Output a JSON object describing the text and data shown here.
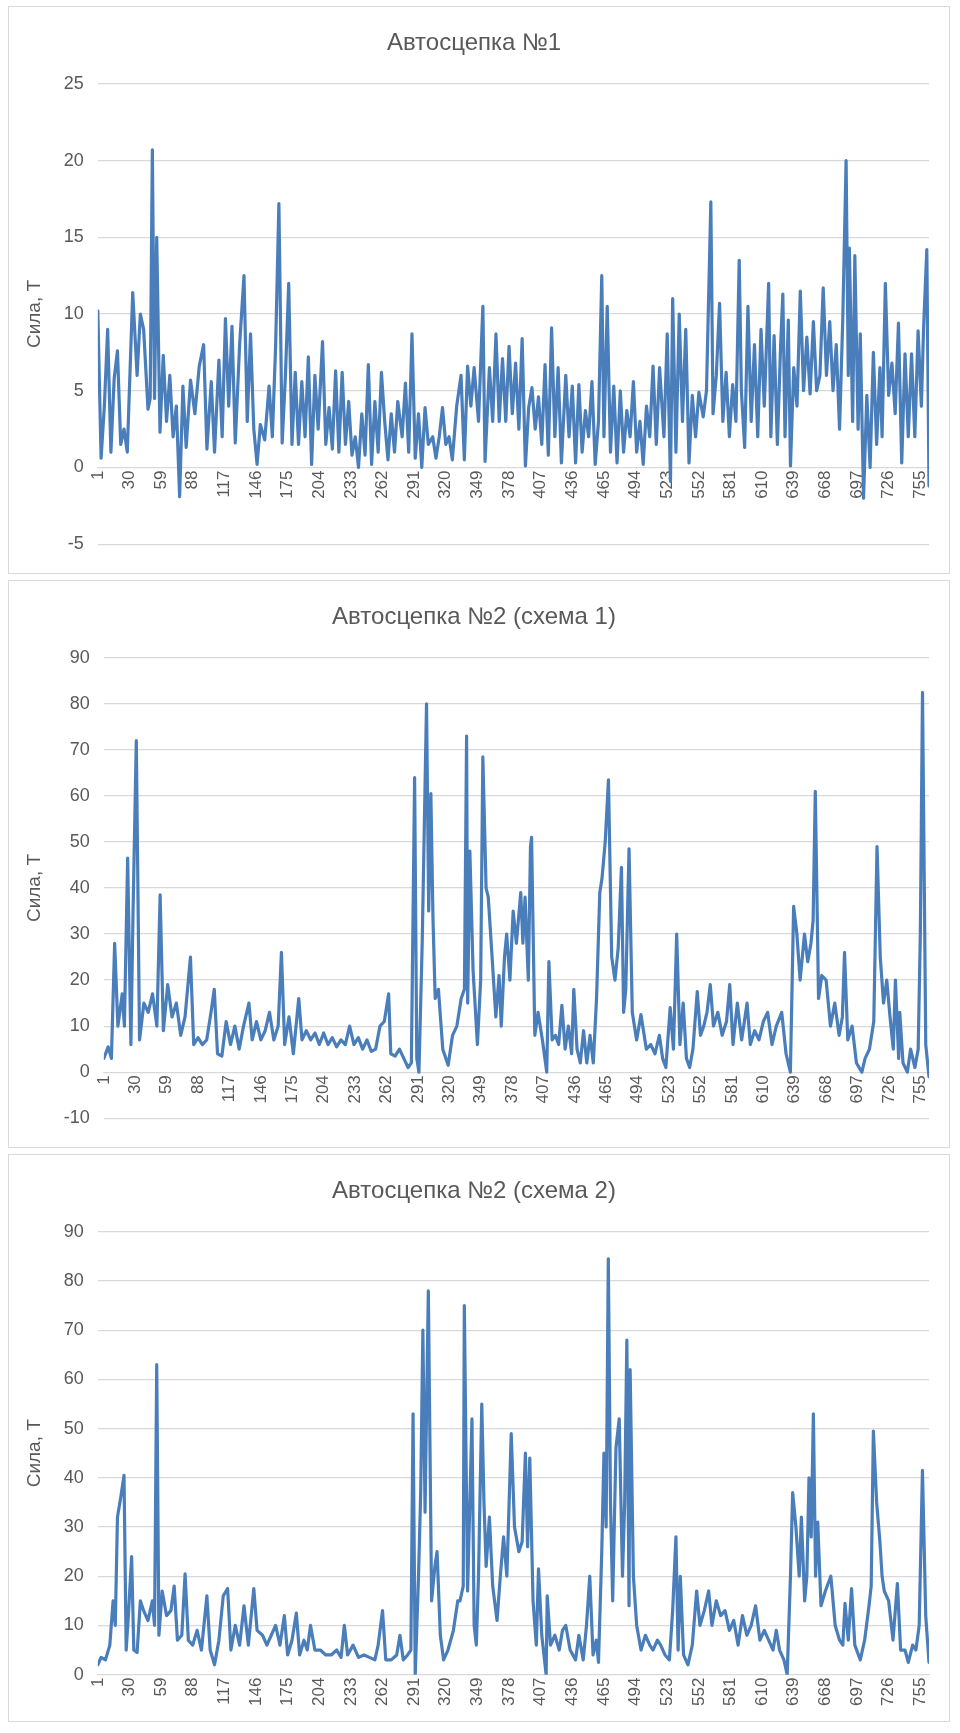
{
  "chart_data": [
    {
      "type": "line",
      "title": "Автосцепка №1",
      "ylabel": "Сила, Т",
      "xlim": [
        1,
        763
      ],
      "xticks": [
        1,
        30,
        59,
        88,
        117,
        146,
        175,
        204,
        233,
        262,
        291,
        320,
        349,
        378,
        407,
        436,
        465,
        494,
        523,
        552,
        581,
        610,
        639,
        668,
        697,
        726,
        755
      ],
      "ylim": [
        -5,
        25
      ],
      "yticks": [
        -5,
        0,
        5,
        10,
        15,
        20,
        25
      ],
      "grid": "y",
      "marker": "none",
      "line_style": "solid",
      "x": [
        1,
        4,
        7,
        10,
        13,
        16,
        19,
        22,
        25,
        28,
        33,
        37,
        40,
        43,
        47,
        49,
        51,
        53,
        55,
        58,
        61,
        64,
        67,
        70,
        73,
        76,
        79,
        82,
        86,
        90,
        94,
        98,
        101,
        105,
        108,
        112,
        115,
        118,
        121,
        124,
        127,
        131,
        135,
        138,
        141,
        144,
        147,
        150,
        154,
        158,
        161,
        164,
        167,
        170,
        173,
        176,
        179,
        182,
        185,
        188,
        191,
        194,
        197,
        200,
        203,
        207,
        210,
        213,
        216,
        219,
        222,
        225,
        228,
        231,
        234,
        237,
        240,
        243,
        246,
        249,
        252,
        255,
        258,
        261,
        264,
        267,
        270,
        273,
        276,
        280,
        283,
        286,
        289,
        292,
        295,
        298,
        301,
        304,
        308,
        311,
        314,
        317,
        320,
        323,
        326,
        330,
        334,
        337,
        340,
        343,
        346,
        350,
        354,
        356,
        360,
        363,
        366,
        369,
        372,
        375,
        378,
        381,
        384,
        387,
        390,
        393,
        396,
        399,
        402,
        405,
        408,
        411,
        414,
        417,
        420,
        423,
        426,
        430,
        433,
        436,
        439,
        442,
        445,
        448,
        451,
        454,
        457,
        460,
        463,
        465,
        468,
        471,
        474,
        477,
        480,
        483,
        486,
        489,
        492,
        495,
        498,
        501,
        504,
        507,
        510,
        513,
        516,
        520,
        523,
        526,
        528,
        531,
        534,
        537,
        540,
        543,
        546,
        549,
        552,
        556,
        559,
        563,
        565,
        568,
        571,
        574,
        577,
        580,
        583,
        586,
        589,
        591,
        594,
        597,
        600,
        603,
        606,
        609,
        612,
        616,
        618,
        621,
        624,
        627,
        629,
        631,
        634,
        636,
        639,
        642,
        645,
        648,
        651,
        654,
        657,
        660,
        663,
        666,
        669,
        672,
        675,
        678,
        681,
        684,
        687,
        689,
        690,
        693,
        695,
        698,
        700,
        703,
        706,
        709,
        712,
        715,
        718,
        720,
        723,
        726,
        729,
        732,
        735,
        738,
        741,
        744,
        747,
        750,
        753,
        756,
        758,
        761,
        763
      ],
      "series": [
        {
          "color": "#4a7ebb",
          "values": [
            10.2,
            0.6,
            4,
            9,
            1,
            5.8,
            7.6,
            1.5,
            2.5,
            1,
            11.4,
            6,
            10,
            9,
            3.8,
            4.5,
            20.7,
            4.5,
            15,
            2.3,
            7.3,
            3,
            6,
            2,
            4,
            -1.9,
            5.3,
            1.3,
            5.7,
            3.5,
            6.6,
            8,
            1.2,
            5.6,
            1,
            7,
            2,
            9.7,
            4,
            9.2,
            1.6,
            8,
            12.5,
            3,
            8.7,
            2.5,
            0.2,
            2.8,
            1.8,
            5.3,
            2,
            7.9,
            17.2,
            1.6,
            6,
            12,
            1.5,
            6.2,
            1.5,
            5.6,
            2,
            7.2,
            0.2,
            6,
            2.5,
            8.2,
            1.5,
            3.9,
            1.2,
            6.3,
            1,
            6.2,
            1.5,
            4.3,
            0.8,
            2,
            0,
            3.5,
            0.8,
            6.7,
            0.2,
            4.3,
            1,
            6.2,
            3,
            0.5,
            3.5,
            1,
            4.3,
            2,
            5.5,
            1,
            8.7,
            0.6,
            3.5,
            0,
            3.9,
            1.5,
            2,
            0.6,
            2,
            3.9,
            1.5,
            2,
            0.5,
            4,
            6,
            0.5,
            6.6,
            4,
            6.5,
            3,
            10.5,
            0.4,
            6.5,
            3,
            8.7,
            3,
            7.1,
            3,
            7.9,
            3.5,
            6.8,
            2.5,
            8.4,
            0.1,
            3.9,
            5.2,
            2.5,
            4.6,
            1.5,
            6.7,
            0.8,
            9.1,
            2,
            6.5,
            0.3,
            6,
            2,
            5.3,
            0.3,
            5.4,
            1,
            3.7,
            2,
            5.6,
            0.2,
            3,
            12.5,
            2,
            10.5,
            1,
            5.3,
            0.3,
            5,
            1,
            3.7,
            2,
            5.6,
            1,
            3,
            0.2,
            4,
            2,
            6.6,
            1.5,
            6.5,
            2,
            8.7,
            -0.9,
            11,
            1,
            10,
            3,
            9,
            0.3,
            4.7,
            2,
            4.9,
            3.3,
            5,
            17.3,
            3.5,
            6,
            10.7,
            3,
            6.2,
            2,
            5.4,
            3,
            13.5,
            5,
            1.3,
            10.5,
            3,
            8,
            2,
            9,
            4,
            12,
            2,
            8.6,
            1.5,
            8,
            11.3,
            2,
            9.6,
            0.1,
            6.5,
            4,
            11.5,
            5,
            8.5,
            4.8,
            9.5,
            5,
            6,
            11.7,
            6,
            9.5,
            5,
            8,
            2.5,
            9.8,
            20,
            6,
            14.3,
            3,
            13.8,
            2.5,
            8.7,
            -2,
            4.7,
            0,
            7.5,
            1.5,
            6.5,
            2,
            12,
            4.7,
            6.8,
            3.5,
            9.4,
            0.3,
            7.4,
            2,
            7.4,
            2,
            8.9,
            4,
            9,
            14.2,
            -1.2
          ]
        }
      ]
    },
    {
      "type": "line",
      "title": "Автосцепка №2 (схема 1)",
      "ylabel": "Сила, Т",
      "xlim": [
        1,
        763
      ],
      "xticks": [
        1,
        30,
        59,
        88,
        117,
        146,
        175,
        204,
        233,
        262,
        291,
        320,
        349,
        378,
        407,
        436,
        465,
        494,
        523,
        552,
        581,
        610,
        639,
        668,
        697,
        726,
        755
      ],
      "ylim": [
        -10,
        90
      ],
      "yticks": [
        -10,
        0,
        10,
        20,
        30,
        40,
        50,
        60,
        70,
        80,
        90
      ],
      "grid": "y",
      "marker": "none",
      "line_style": "solid",
      "x": [
        1,
        5,
        8,
        11,
        14,
        18,
        20,
        23,
        26,
        28,
        31,
        34,
        38,
        42,
        46,
        50,
        53,
        56,
        60,
        64,
        68,
        72,
        76,
        81,
        84,
        88,
        92,
        96,
        100,
        103,
        106,
        110,
        114,
        118,
        122,
        126,
        130,
        135,
        138,
        142,
        146,
        150,
        154,
        158,
        162,
        165,
        168,
        172,
        176,
        181,
        184,
        188,
        192,
        196,
        200,
        204,
        208,
        212,
        216,
        220,
        224,
        228,
        232,
        236,
        240,
        244,
        248,
        252,
        256,
        260,
        264,
        266,
        270,
        274,
        278,
        282,
        285,
        288,
        290,
        292,
        295,
        299,
        301,
        303,
        305,
        307,
        310,
        314,
        319,
        323,
        327,
        331,
        334,
        336,
        337,
        339,
        342,
        346,
        349,
        351,
        354,
        356,
        359,
        363,
        366,
        368,
        371,
        373,
        376,
        379,
        382,
        386,
        388,
        390,
        393,
        395,
        396,
        399,
        402,
        406,
        410,
        412,
        415,
        418,
        421,
        424,
        427,
        430,
        433,
        435,
        438,
        441,
        444,
        447,
        450,
        453,
        456,
        459,
        461,
        464,
        467,
        470,
        473,
        476,
        479,
        481,
        483,
        486,
        489,
        493,
        497,
        502,
        506,
        510,
        514,
        517,
        520,
        524,
        527,
        530,
        533,
        536,
        539,
        542,
        545,
        549,
        552,
        555,
        558,
        561,
        564,
        568,
        572,
        576,
        579,
        582,
        586,
        590,
        595,
        598,
        602,
        606,
        610,
        614,
        618,
        622,
        627,
        631,
        635,
        638,
        641,
        644,
        648,
        651,
        654,
        656,
        658,
        661,
        664,
        668,
        672,
        676,
        680,
        683,
        685,
        688,
        692,
        696,
        701,
        704,
        708,
        712,
        715,
        718,
        721,
        724,
        727,
        730,
        732,
        735,
        736,
        739,
        743,
        746,
        750,
        753,
        755,
        757,
        760,
        763
      ],
      "series": [
        {
          "color": "#4a7ebb",
          "values": [
            3,
            5.5,
            3,
            28,
            10,
            17,
            10,
            46.5,
            6,
            35,
            72,
            7,
            15,
            13,
            17,
            10,
            38.5,
            9,
            19,
            12,
            15,
            8,
            12,
            25,
            6,
            7.5,
            6,
            7,
            13,
            18,
            4,
            3.5,
            11,
            6,
            10,
            5,
            10,
            15,
            7,
            11,
            7,
            9,
            13,
            7,
            10,
            26,
            6,
            12,
            4,
            16,
            7,
            9,
            7,
            8.5,
            6,
            8.5,
            6,
            7.5,
            5.5,
            7,
            6,
            10,
            6,
            7.5,
            5,
            7,
            4.5,
            5,
            10,
            11,
            17,
            4,
            3.5,
            5,
            3,
            1,
            2,
            64,
            3,
            0,
            28,
            80,
            35,
            60.5,
            33,
            16,
            18,
            5,
            1.5,
            8,
            10,
            16,
            18,
            73,
            15,
            48,
            22,
            6,
            20,
            68.5,
            40,
            38,
            27,
            12,
            21,
            10,
            25,
            30,
            20,
            35,
            28,
            39,
            28,
            38,
            20,
            49,
            51,
            8,
            13,
            7,
            0,
            24,
            7,
            8,
            6,
            14.5,
            5,
            10,
            4,
            18,
            5,
            2,
            9,
            2,
            8,
            2,
            16,
            39,
            42,
            50,
            63.5,
            25,
            20,
            27,
            44.5,
            13,
            18,
            48.5,
            13,
            7,
            12.5,
            5,
            6,
            4,
            8,
            3,
            1,
            14,
            5,
            30,
            6,
            15,
            3,
            1,
            5,
            17.5,
            8,
            10,
            13,
            19,
            10,
            13,
            8,
            11,
            19,
            6,
            15,
            7,
            15,
            6,
            9,
            7,
            11,
            13,
            6,
            10,
            13,
            4,
            0,
            36,
            30,
            20,
            30,
            24,
            28,
            33,
            61,
            16,
            21,
            20,
            10,
            15,
            8,
            12,
            26,
            7,
            10,
            2,
            0,
            3,
            5,
            11,
            49,
            25,
            15,
            20,
            12,
            5,
            20,
            3,
            13,
            2,
            0,
            5,
            1,
            5,
            30,
            82.5,
            6,
            -1
          ]
        }
      ]
    },
    {
      "type": "line",
      "title": "Автосцепка №2 (схема 2)",
      "ylabel": "Сила, Т",
      "xlim": [
        1,
        763
      ],
      "xticks": [
        1,
        30,
        59,
        88,
        117,
        146,
        175,
        204,
        233,
        262,
        291,
        320,
        349,
        378,
        407,
        436,
        465,
        494,
        523,
        552,
        581,
        610,
        639,
        668,
        697,
        726,
        755
      ],
      "ylim": [
        0,
        90
      ],
      "yticks": [
        0,
        10,
        20,
        30,
        40,
        50,
        60,
        70,
        80,
        90
      ],
      "grid": "y",
      "marker": "none",
      "line_style": "solid",
      "x": [
        1,
        4,
        8,
        12,
        15,
        17,
        19,
        22,
        25,
        27,
        29,
        32,
        34,
        37,
        40,
        43,
        47,
        51,
        53,
        55,
        57,
        60,
        64,
        68,
        71,
        74,
        78,
        81,
        84,
        88,
        92,
        96,
        101,
        104,
        108,
        112,
        116,
        120,
        123,
        127,
        131,
        135,
        139,
        144,
        147,
        152,
        156,
        160,
        164,
        168,
        172,
        175,
        179,
        183,
        186,
        190,
        193,
        196,
        200,
        205,
        210,
        215,
        220,
        224,
        227,
        230,
        235,
        240,
        245,
        250,
        255,
        258,
        262,
        265,
        270,
        275,
        278,
        281,
        285,
        288,
        290,
        292,
        295,
        297,
        299,
        301,
        304,
        307,
        310,
        312,
        315,
        318,
        322,
        327,
        331,
        333,
        336,
        337,
        340,
        344,
        346,
        348,
        350,
        353,
        355,
        357,
        360,
        363,
        367,
        370,
        373,
        376,
        380,
        383,
        387,
        390,
        393,
        395,
        397,
        400,
        403,
        405,
        408,
        412,
        413,
        416,
        420,
        424,
        427,
        430,
        434,
        439,
        442,
        446,
        449,
        452,
        455,
        458,
        460,
        463,
        465,
        467,
        469,
        471,
        473,
        476,
        479,
        482,
        484,
        486,
        488,
        489,
        492,
        495,
        499,
        503,
        507,
        510,
        514,
        517,
        521,
        525,
        528,
        531,
        533,
        535,
        538,
        542,
        546,
        550,
        553,
        557,
        561,
        564,
        568,
        572,
        576,
        580,
        584,
        588,
        592,
        596,
        600,
        604,
        608,
        612,
        616,
        620,
        623,
        626,
        630,
        633,
        636,
        638,
        641,
        644,
        646,
        649,
        651,
        653,
        655,
        657,
        659,
        661,
        664,
        668,
        673,
        677,
        681,
        684,
        686,
        689,
        692,
        695,
        700,
        704,
        708,
        710,
        712,
        715,
        718,
        720,
        722,
        726,
        730,
        734,
        737,
        741,
        744,
        748,
        751,
        754,
        757,
        760,
        763
      ],
      "series": [
        {
          "color": "#4a7ebb",
          "values": [
            2,
            3.5,
            3,
            6,
            15,
            10,
            32,
            36,
            40.5,
            5,
            12,
            24,
            5,
            4.5,
            15,
            13,
            11,
            15,
            10,
            63,
            8,
            17,
            12,
            13,
            18,
            7,
            8,
            20.5,
            7,
            6,
            9,
            5,
            16,
            5,
            2,
            7,
            16,
            17.5,
            5,
            10,
            6,
            14,
            6,
            17.5,
            9,
            8,
            6,
            8,
            10,
            6,
            12,
            4,
            7,
            12.5,
            4,
            7,
            5,
            10,
            5,
            5,
            4,
            4,
            5,
            3.5,
            10,
            4,
            6,
            3.5,
            4,
            3.5,
            3,
            6,
            13,
            3,
            3,
            4,
            8,
            3,
            4,
            5,
            53,
            0,
            20,
            37,
            70,
            33,
            78,
            15,
            22,
            25,
            8,
            3,
            5,
            9,
            15,
            15,
            18,
            75,
            17,
            52,
            10,
            6,
            20,
            55,
            35,
            22,
            32,
            18,
            11,
            20,
            28,
            20,
            49,
            30,
            25,
            27,
            45,
            26,
            44,
            15,
            6,
            21.5,
            8,
            0,
            16,
            6,
            8,
            5,
            9,
            10,
            5,
            3,
            8,
            3,
            10,
            20,
            4,
            7,
            2.5,
            25,
            45,
            30,
            84.5,
            35,
            15,
            46,
            52,
            20,
            35,
            68,
            14,
            62,
            20,
            10,
            5,
            8,
            6,
            5,
            7,
            6,
            4,
            3,
            13,
            28,
            5,
            20,
            4,
            2,
            6,
            17,
            10,
            13,
            17,
            10,
            15,
            12,
            13,
            9,
            11,
            6,
            12,
            8,
            10,
            14,
            7,
            9,
            7,
            5,
            9,
            5,
            3,
            0,
            20,
            37,
            30,
            20,
            32,
            15,
            20,
            40,
            28,
            53,
            20,
            31,
            14,
            17,
            20,
            10,
            7,
            6,
            14.5,
            7,
            17.5,
            6,
            3,
            7,
            14,
            18,
            49.5,
            35,
            27,
            20,
            17,
            15,
            7,
            18.5,
            5,
            5,
            2.5,
            6,
            5,
            10,
            41.5,
            12,
            2.5
          ]
        }
      ]
    }
  ]
}
